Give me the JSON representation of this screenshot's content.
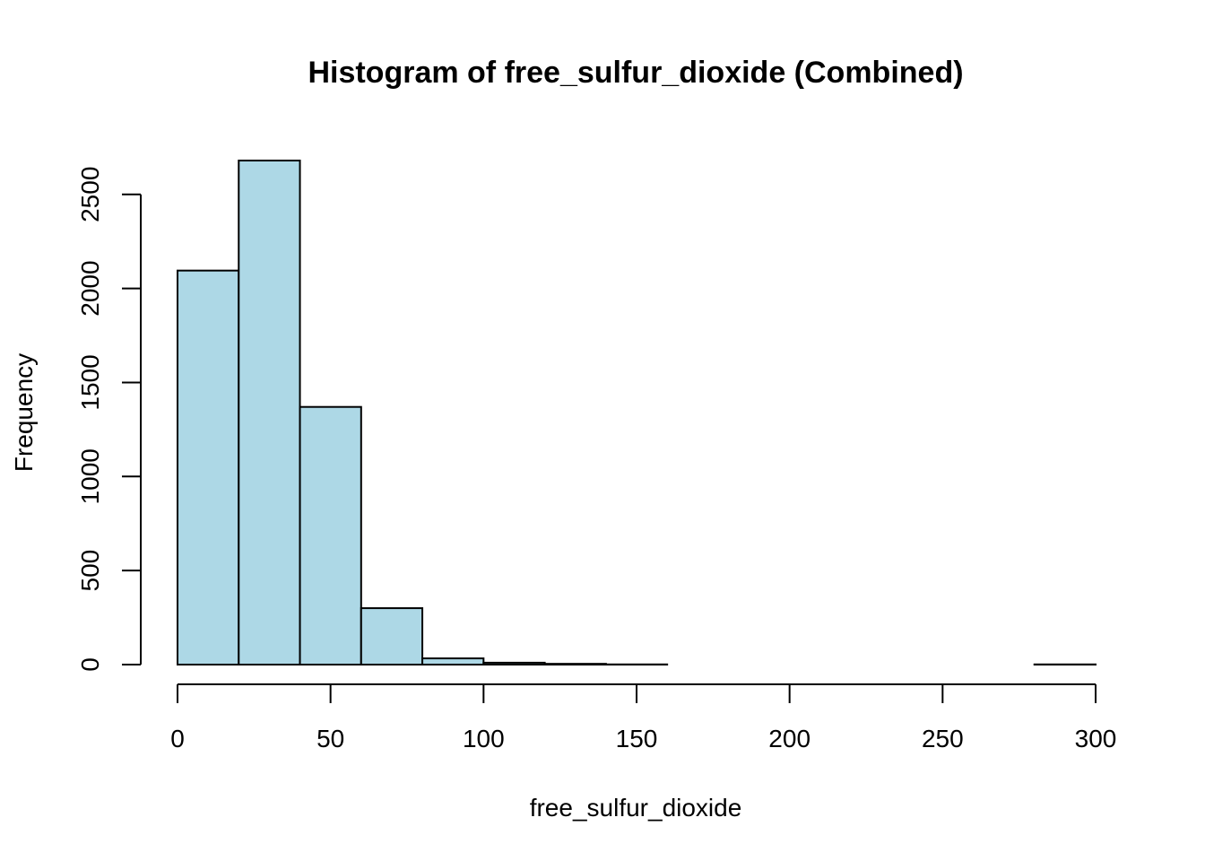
{
  "chart_data": {
    "type": "bar",
    "title": "Histogram of free_sulfur_dioxide (Combined)",
    "xlabel": "free_sulfur_dioxide",
    "ylabel": "Frequency",
    "bin_edges": [
      0,
      20,
      40,
      60,
      80,
      100,
      120,
      140,
      160,
      180,
      200,
      220,
      240,
      260,
      280,
      300
    ],
    "values": [
      2095,
      2680,
      1370,
      300,
      33,
      10,
      4,
      1,
      0,
      0,
      0,
      0,
      0,
      0,
      1
    ],
    "xlim": [
      0,
      300
    ],
    "ylim": [
      0,
      2680
    ],
    "x_ticks": [
      0,
      50,
      100,
      150,
      200,
      250,
      300
    ],
    "y_ticks": [
      0,
      500,
      1000,
      1500,
      2000,
      2500
    ],
    "bar_fill": "#add8e6",
    "bar_stroke": "#000000",
    "grid": false
  }
}
